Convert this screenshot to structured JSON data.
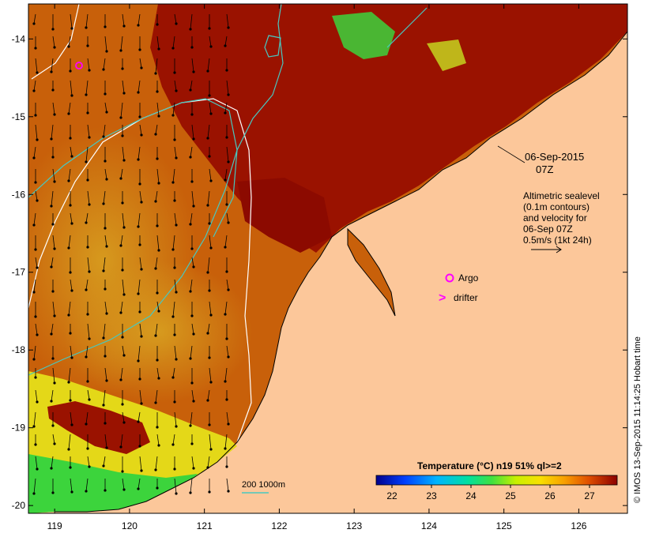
{
  "map": {
    "x_ticks": [
      "119",
      "120",
      "121",
      "122",
      "123",
      "124",
      "125",
      "126"
    ],
    "y_ticks": [
      "-14",
      "-15",
      "-16",
      "-17",
      "-18",
      "-19",
      "-20"
    ],
    "x_tick_values": [
      119,
      120,
      121,
      122,
      123,
      124,
      125,
      126
    ],
    "y_tick_values": [
      -14,
      -15,
      -16,
      -17,
      -18,
      -19,
      -20
    ],
    "lon_range": [
      118.65,
      126.65
    ],
    "lat_range": [
      -13.55,
      -20.1
    ]
  },
  "annotations": {
    "date": "06-Sep-2015",
    "time": "07Z",
    "altimetry_lines": [
      "Altimetric sealevel",
      "(0.1m contours)",
      "and velocity for",
      "06-Sep 07Z",
      "0.5m/s (1kt 24h)"
    ],
    "argo_label": "Argo",
    "drifter_label": "drifter",
    "drifter_symbol": ">",
    "depth_legend": "200  1000m"
  },
  "colorbar": {
    "title": "Temperature (°C) n19 51% ql>=2",
    "ticks": [
      "22",
      "23",
      "24",
      "25",
      "26",
      "27"
    ],
    "tick_values": [
      22,
      23,
      24,
      25,
      26,
      27
    ],
    "range": [
      21.6,
      27.7
    ]
  },
  "credit": "© IMOS 13-Sep-2015 11:14:25 Hobart time",
  "colors": {
    "land": "#fcc79a",
    "warm": "#9a1200",
    "mid": "#c8600a",
    "cool": "#d8a020",
    "yellow": "#e4e418",
    "green": "#3cd43c",
    "argo": "#ff00ff",
    "contour_white": "#ffffff",
    "contour_cyan": "#48c8c0"
  }
}
